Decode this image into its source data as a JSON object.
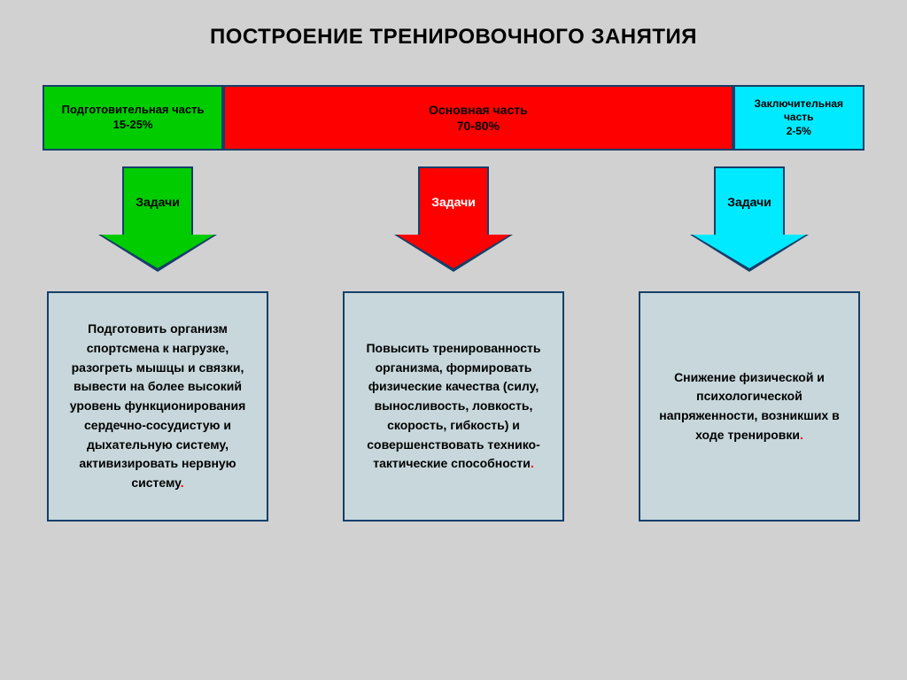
{
  "title": "ПОСТРОЕНИЕ ТРЕНИРОВОЧНОГО ЗАНЯТИЯ",
  "background_color": "#d1d1d1",
  "border_color": "#163f6a",
  "box_background": "#c7d7dc",
  "arrow_label": "Задачи",
  "segments": [
    {
      "line1": "Подготовительная часть",
      "line2": "15-25%",
      "width_pct": 22,
      "background": "#00cc00",
      "text_color": "#000000",
      "fontsize": 13
    },
    {
      "line1": "Основная часть",
      "line2": "70-80%",
      "width_pct": 62,
      "background": "#ff0000",
      "text_color": "#000000",
      "fontsize": 14
    },
    {
      "line1": "Заключительная",
      "line2_extra": "часть",
      "line2": "2-5%",
      "width_pct": 16,
      "background": "#00eaff",
      "text_color": "#000000",
      "fontsize": 12
    }
  ],
  "columns": [
    {
      "arrow_color": "#00cc00",
      "arrow_text_color": "#000000",
      "box_text": "Подготовить организм спортсмена к нагрузке, разогреть мышцы и связки, вывести на более высокий уровень функционирования сердечно-сосудистую и дыхательную систему, активизировать нервную систему"
    },
    {
      "arrow_color": "#ff0000",
      "arrow_text_color": "#ffffff",
      "box_text": "Повысить тренированность организма, формировать физические качества (силу, выносливость, ловкость, скорость, гибкость) и совершенствовать технико-тактические способности"
    },
    {
      "arrow_color": "#00eaff",
      "arrow_text_color": "#000000",
      "box_text": "Снижение физической и психологической напряженности, возникших в ходе тренировки"
    }
  ]
}
